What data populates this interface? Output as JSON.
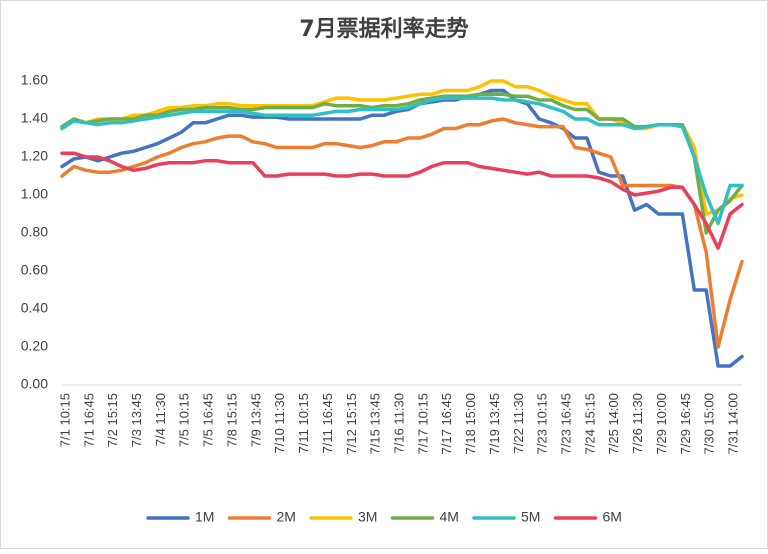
{
  "chart_data": {
    "type": "line",
    "title": "7月票据利率走势",
    "categories": [
      "7/1 10:15",
      null,
      "7/1 16:45",
      null,
      "7/2 15:15",
      null,
      "7/3 13:45",
      null,
      "7/4 11:30",
      null,
      "7/5 10:15",
      null,
      "7/5 16:45",
      null,
      "7/8 15:15",
      null,
      "7/9 13:45",
      null,
      "7/10 11:30",
      null,
      "7/11 10:15",
      null,
      "7/11 16:45",
      null,
      "7/12 15:15",
      null,
      "7/15 13:45",
      null,
      "7/16 11:30",
      null,
      "7/17 10:15",
      null,
      "7/17 16:45",
      null,
      "7/18 15:00",
      null,
      "7/19 13:45",
      null,
      "7/22 11:30",
      null,
      "7/23 10:15",
      null,
      "7/23 16:45",
      null,
      "7/24 15:15",
      null,
      "7/25 14:00",
      null,
      "7/26 11:30",
      null,
      "7/29 10:00",
      null,
      "7/29 16:45",
      null,
      "7/30 15:00",
      null,
      "7/31 14:00",
      null
    ],
    "series": [
      {
        "name": "1M",
        "color": "#4472c4",
        "values": [
          1.15,
          1.19,
          1.2,
          1.18,
          1.2,
          1.22,
          1.23,
          1.25,
          1.27,
          1.3,
          1.33,
          1.38,
          1.38,
          1.4,
          1.42,
          1.42,
          1.41,
          1.41,
          1.41,
          1.4,
          1.4,
          1.4,
          1.4,
          1.4,
          1.4,
          1.4,
          1.42,
          1.42,
          1.44,
          1.45,
          1.48,
          1.49,
          1.5,
          1.5,
          1.52,
          1.53,
          1.55,
          1.55,
          1.5,
          1.48,
          1.4,
          1.38,
          1.35,
          1.3,
          1.3,
          1.12,
          1.1,
          1.1,
          0.92,
          0.95,
          0.9,
          0.9,
          0.9,
          0.5,
          0.5,
          0.1,
          0.1,
          0.15
        ]
      },
      {
        "name": "2M",
        "color": "#ed7d31",
        "values": [
          1.1,
          1.15,
          1.13,
          1.12,
          1.12,
          1.13,
          1.15,
          1.17,
          1.2,
          1.22,
          1.25,
          1.27,
          1.28,
          1.3,
          1.31,
          1.31,
          1.28,
          1.27,
          1.25,
          1.25,
          1.25,
          1.25,
          1.27,
          1.27,
          1.26,
          1.25,
          1.26,
          1.28,
          1.28,
          1.3,
          1.3,
          1.32,
          1.35,
          1.35,
          1.37,
          1.37,
          1.39,
          1.4,
          1.38,
          1.37,
          1.36,
          1.36,
          1.36,
          1.25,
          1.24,
          1.22,
          1.2,
          1.05,
          1.05,
          1.05,
          1.05,
          1.05,
          1.04,
          0.95,
          0.7,
          0.2,
          0.45,
          0.65
        ]
      },
      {
        "name": "3M",
        "color": "#ffc000",
        "values": [
          1.35,
          1.4,
          1.38,
          1.4,
          1.4,
          1.4,
          1.42,
          1.42,
          1.44,
          1.46,
          1.46,
          1.47,
          1.47,
          1.48,
          1.48,
          1.47,
          1.47,
          1.47,
          1.47,
          1.47,
          1.47,
          1.47,
          1.49,
          1.51,
          1.51,
          1.5,
          1.5,
          1.5,
          1.51,
          1.52,
          1.53,
          1.53,
          1.55,
          1.55,
          1.55,
          1.57,
          1.6,
          1.6,
          1.57,
          1.57,
          1.55,
          1.52,
          1.5,
          1.48,
          1.48,
          1.4,
          1.4,
          1.38,
          1.35,
          1.35,
          1.37,
          1.37,
          1.37,
          1.25,
          0.9,
          0.92,
          0.98,
          1.0
        ]
      },
      {
        "name": "4M",
        "color": "#70ad47",
        "values": [
          1.36,
          1.4,
          1.38,
          1.39,
          1.4,
          1.4,
          1.4,
          1.42,
          1.42,
          1.44,
          1.45,
          1.45,
          1.46,
          1.46,
          1.46,
          1.45,
          1.45,
          1.46,
          1.46,
          1.46,
          1.46,
          1.46,
          1.48,
          1.47,
          1.47,
          1.47,
          1.46,
          1.47,
          1.47,
          1.48,
          1.5,
          1.51,
          1.52,
          1.52,
          1.52,
          1.53,
          1.53,
          1.53,
          1.52,
          1.52,
          1.5,
          1.5,
          1.47,
          1.45,
          1.45,
          1.4,
          1.4,
          1.4,
          1.36,
          1.36,
          1.37,
          1.37,
          1.37,
          1.2,
          0.8,
          0.92,
          0.97,
          1.05
        ]
      },
      {
        "name": "5M",
        "color": "#2fbfc4",
        "values": [
          1.35,
          1.39,
          1.38,
          1.37,
          1.38,
          1.38,
          1.39,
          1.4,
          1.41,
          1.42,
          1.43,
          1.44,
          1.44,
          1.44,
          1.44,
          1.44,
          1.43,
          1.42,
          1.42,
          1.42,
          1.42,
          1.42,
          1.43,
          1.44,
          1.44,
          1.45,
          1.45,
          1.45,
          1.45,
          1.46,
          1.48,
          1.5,
          1.51,
          1.51,
          1.51,
          1.51,
          1.51,
          1.5,
          1.5,
          1.49,
          1.48,
          1.46,
          1.44,
          1.4,
          1.4,
          1.37,
          1.37,
          1.37,
          1.35,
          1.36,
          1.37,
          1.37,
          1.36,
          1.2,
          1.0,
          0.85,
          1.05,
          1.05
        ]
      },
      {
        "name": "6M",
        "color": "#e8405a",
        "values": [
          1.22,
          1.22,
          1.2,
          1.2,
          1.18,
          1.15,
          1.13,
          1.14,
          1.16,
          1.17,
          1.17,
          1.17,
          1.18,
          1.18,
          1.17,
          1.17,
          1.17,
          1.1,
          1.1,
          1.11,
          1.11,
          1.11,
          1.11,
          1.1,
          1.1,
          1.11,
          1.11,
          1.1,
          1.1,
          1.1,
          1.12,
          1.15,
          1.17,
          1.17,
          1.17,
          1.15,
          1.14,
          1.13,
          1.12,
          1.11,
          1.12,
          1.1,
          1.1,
          1.1,
          1.1,
          1.09,
          1.07,
          1.03,
          1.0,
          1.01,
          1.02,
          1.04,
          1.04,
          0.95,
          0.85,
          0.72,
          0.9,
          0.95
        ]
      }
    ],
    "ylim": [
      0,
      1.6
    ],
    "yticks": [
      {
        "value": 0,
        "label": "0.00"
      },
      {
        "value": 0.2,
        "label": "0.20"
      },
      {
        "value": 0.4,
        "label": "0.40"
      },
      {
        "value": 0.6,
        "label": "0.60"
      },
      {
        "value": 0.8,
        "label": "0.80"
      },
      {
        "value": 1,
        "label": "1.00"
      },
      {
        "value": 1.2,
        "label": "1.20"
      },
      {
        "value": 1.4,
        "label": "1.40"
      },
      {
        "value": 1.6,
        "label": "1.60"
      }
    ],
    "grid": false,
    "legend": "bottom"
  }
}
